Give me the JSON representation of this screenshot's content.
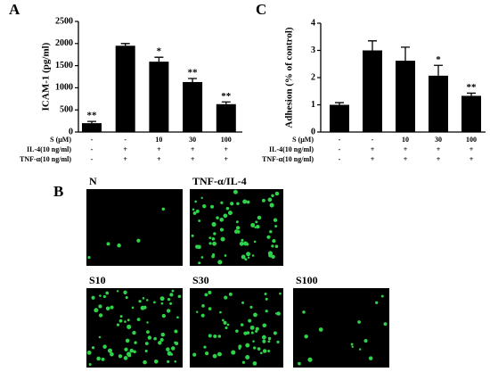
{
  "chart_data": [
    {
      "type": "bar",
      "label": "A",
      "ylabel": "ICAM-1 (pg/ml)",
      "color": "#000000",
      "ylim": [
        0,
        2500
      ],
      "yticks": [
        0,
        500,
        1000,
        1500,
        2000,
        2500
      ],
      "values": [
        200,
        1950,
        1590,
        1130,
        630
      ],
      "errors": [
        40,
        50,
        100,
        80,
        50
      ],
      "annotations": [
        "**",
        null,
        "*",
        "**",
        "**"
      ],
      "rows": [
        {
          "label": "S (μM)",
          "values": [
            "-",
            "-",
            "10",
            "30",
            "100"
          ]
        },
        {
          "label": "IL-4(10 ng/ml)",
          "values": [
            "-",
            "+",
            "+",
            "+",
            "+"
          ]
        },
        {
          "label": "TNF-α(10 ng/ml)",
          "values": [
            "-",
            "+",
            "+",
            "+",
            "+"
          ]
        }
      ]
    },
    {
      "type": "bar",
      "label": "C",
      "ylabel": "Adhesion (% of control)",
      "color": "#000000",
      "ylim": [
        0,
        4
      ],
      "yticks": [
        0,
        1,
        2,
        3,
        4
      ],
      "values": [
        1.0,
        3.0,
        2.62,
        2.07,
        1.33
      ],
      "errors": [
        0.08,
        0.35,
        0.5,
        0.38,
        0.1
      ],
      "annotations": [
        null,
        null,
        null,
        "*",
        "**"
      ],
      "rows": [
        {
          "label": "S (μM)",
          "values": [
            "-",
            "-",
            "10",
            "30",
            "100"
          ]
        },
        {
          "label": "IL-4(10 ng/ml)",
          "values": [
            "-",
            "+",
            "+",
            "+",
            "+"
          ]
        },
        {
          "label": "TNF-α(10 ng/ml)",
          "values": [
            "-",
            "+",
            "+",
            "+",
            "+"
          ]
        }
      ]
    }
  ],
  "panel_b": {
    "label": "B",
    "images": [
      "N",
      "TNF-α/IL-4",
      "S10",
      "S30",
      "S100"
    ]
  }
}
